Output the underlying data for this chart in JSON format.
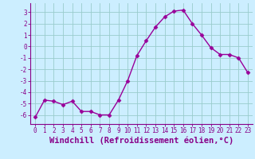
{
  "x": [
    0,
    1,
    2,
    3,
    4,
    5,
    6,
    7,
    8,
    9,
    10,
    11,
    12,
    13,
    14,
    15,
    16,
    17,
    18,
    19,
    20,
    21,
    22,
    23
  ],
  "y": [
    -6.2,
    -4.7,
    -4.8,
    -5.1,
    -4.8,
    -5.7,
    -5.7,
    -6.0,
    -6.0,
    -4.7,
    -3.0,
    -0.8,
    0.5,
    1.7,
    2.6,
    3.1,
    3.2,
    2.0,
    1.0,
    -0.1,
    -0.7,
    -0.7,
    -1.0,
    -2.3
  ],
  "line_color": "#990099",
  "marker": "D",
  "markersize": 2.5,
  "linewidth": 1.0,
  "bg_color": "#cceeff",
  "grid_color": "#99cccc",
  "xlabel": "Windchill (Refroidissement éolien,°C)",
  "ylabel": "",
  "ylim": [
    -6.8,
    3.8
  ],
  "xlim": [
    -0.5,
    23.5
  ],
  "yticks": [
    -6,
    -5,
    -4,
    -3,
    -2,
    -1,
    0,
    1,
    2,
    3
  ],
  "xticks": [
    0,
    1,
    2,
    3,
    4,
    5,
    6,
    7,
    8,
    9,
    10,
    11,
    12,
    13,
    14,
    15,
    16,
    17,
    18,
    19,
    20,
    21,
    22,
    23
  ],
  "tick_fontsize": 5.5,
  "xlabel_fontsize": 7.5,
  "tick_color": "#880088",
  "axis_color": "#880088",
  "spine_color": "#880088"
}
